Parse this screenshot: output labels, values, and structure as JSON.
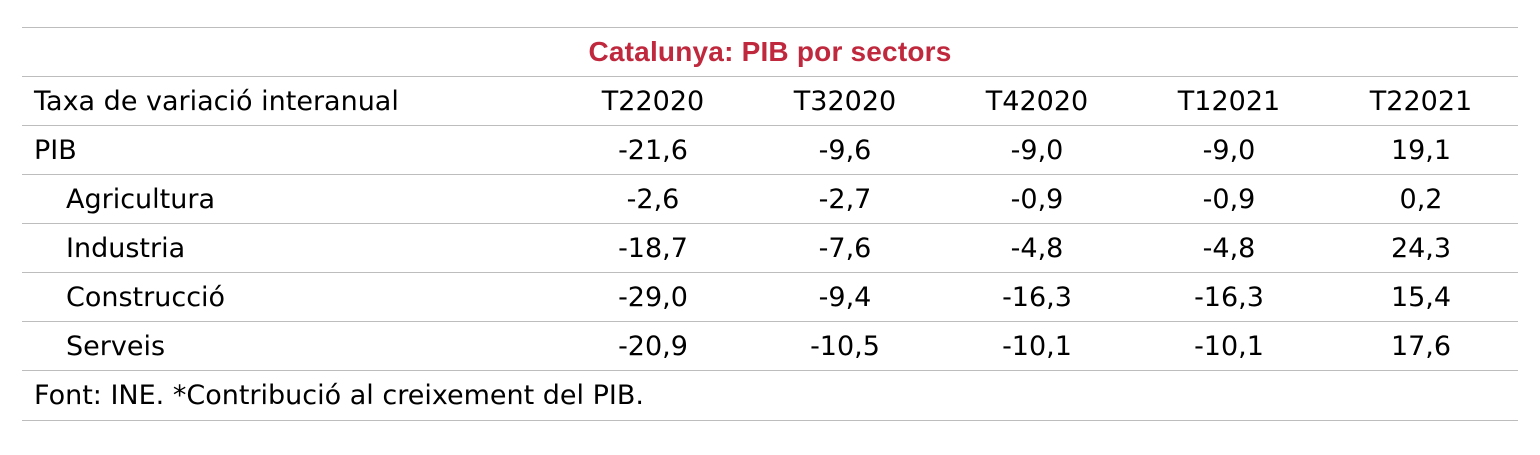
{
  "chart_data": {
    "type": "table",
    "title": "Catalunya: PIB por sectors",
    "header_label": "Taxa de variació interanual",
    "columns": [
      "T22020",
      "T32020",
      "T42020",
      "T12021",
      "T22021"
    ],
    "rows": [
      {
        "label": "PIB",
        "indent": false,
        "values": [
          "-21,6",
          "-9,6",
          "-9,0",
          "-9,0",
          "19,1"
        ]
      },
      {
        "label": "Agricultura",
        "indent": true,
        "values": [
          "-2,6",
          "-2,7",
          "-0,9",
          "-0,9",
          "0,2"
        ]
      },
      {
        "label": "Industria",
        "indent": true,
        "values": [
          "-18,7",
          "-7,6",
          "-4,8",
          "-4,8",
          "24,3"
        ]
      },
      {
        "label": "Construcció",
        "indent": true,
        "values": [
          "-29,0",
          "-9,4",
          "-16,3",
          "-16,3",
          "15,4"
        ]
      },
      {
        "label": "Serveis",
        "indent": true,
        "values": [
          "-20,9",
          "-10,5",
          "-10,1",
          "-10,1",
          "17,6"
        ]
      }
    ],
    "footnote": "Font: INE. *Contribució al creixement del PIB.",
    "title_color": "#c0283d",
    "rule_color": "#bdbdbd"
  }
}
